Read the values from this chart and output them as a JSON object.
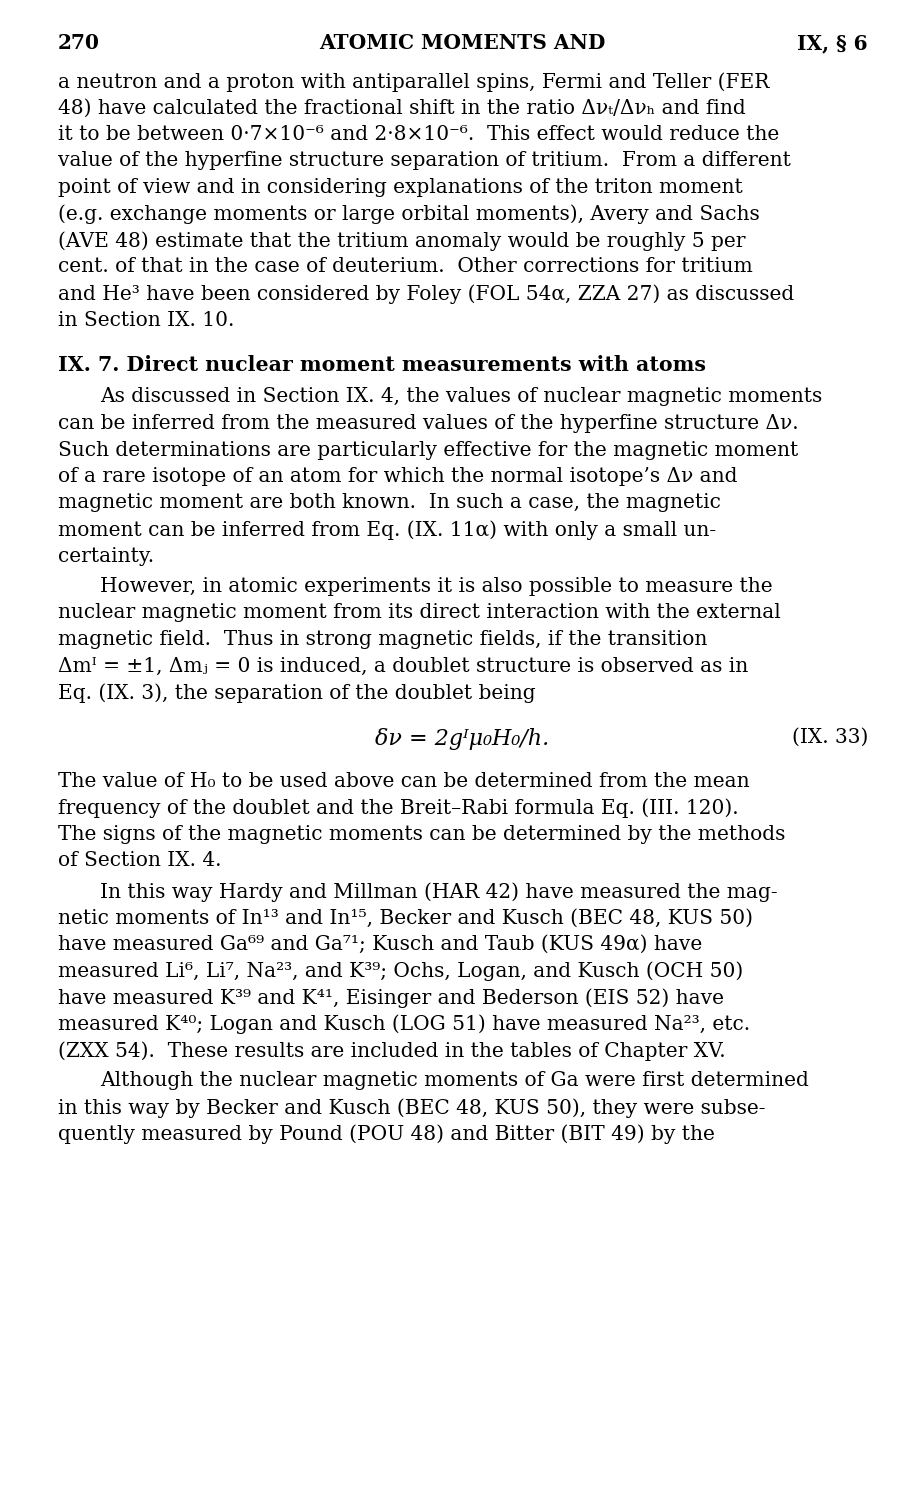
{
  "page_num": "270",
  "header_center": "ATOMIC MOMENTS AND",
  "header_right": "IX, § 6",
  "bg_color": "#ffffff",
  "text_color": "#000000",
  "para1_lines": [
    "a neutron and a proton with antiparallel spins, Fermi and Teller (FER",
    "48) have calculated the fractional shift in the ratio Δνₜ/Δνₕ and find",
    "it to be between 0·7×10⁻⁶ and 2·8×10⁻⁶.  This effect would reduce the",
    "value of the hyperfine structure separation of tritium.  From a different",
    "point of view and in considering explanations of the triton moment",
    "(e.g. exchange moments or large orbital moments), Avery and Sachs",
    "(AVE 48) estimate that the tritium anomaly would be roughly 5 per",
    "cent. of that in the case of deuterium.  Other corrections for tritium",
    "and He³ have been considered by Foley (FOL 54α, ZZA 27) as discussed",
    "in Section IX. 10."
  ],
  "section_heading": "IX. 7. Direct nuclear moment measurements with atoms",
  "para2_lines": [
    "As discussed in Section IX. 4, the values of nuclear magnetic moments",
    "can be inferred from the measured values of the hyperfine structure Δν.",
    "Such determinations are particularly effective for the magnetic moment",
    "of a rare isotope of an atom for which the normal isotope’s Δν and",
    "magnetic moment are both known.  In such a case, the magnetic",
    "moment can be inferred from Eq. (IX. 11α) with only a small un-",
    "certainty."
  ],
  "para3_lines": [
    "However, in atomic experiments it is also possible to measure the",
    "nuclear magnetic moment from its direct interaction with the external",
    "magnetic field.  Thus in strong magnetic fields, if the transition",
    "Δmᴵ = ±1, Δmⱼ = 0 is induced, a doublet structure is observed as in",
    "Eq. (IX. 3), the separation of the doublet being"
  ],
  "equation": "δν = 2gᴵμ₀H₀/h.",
  "eq_label": "(IX. 33)",
  "para4_lines": [
    "The value of H₀ to be used above can be determined from the mean",
    "frequency of the doublet and the Breit–Rabi formula Eq. (III. 120).",
    "The signs of the magnetic moments can be determined by the methods",
    "of Section IX. 4."
  ],
  "para5_lines": [
    "In this way Hardy and Millman (HAR 42) have measured the mag-",
    "netic moments of In¹³ and In¹⁵, Becker and Kusch (BEC 48, KUS 50)",
    "have measured Ga⁶⁹ and Ga⁷¹; Kusch and Taub (KUS 49α) have",
    "measured Li⁶, Li⁷, Na²³, and K³⁹; Ochs, Logan, and Kusch (OCH 50)",
    "have measured K³⁹ and K⁴¹, Eisinger and Bederson (EIS 52) have",
    "measured K⁴⁰; Logan and Kusch (LOG 51) have measured Na²³, etc.",
    "(ZXX 54).  These results are included in the tables of Chapter XV."
  ],
  "para6_lines": [
    "Although the nuclear magnetic moments of Ga were first determined",
    "in this way by Becker and Kusch (BEC 48, KUS 50), they were subse-",
    "quently measured by Pound (POU 48) and Bitter (BIT 49) by the"
  ]
}
